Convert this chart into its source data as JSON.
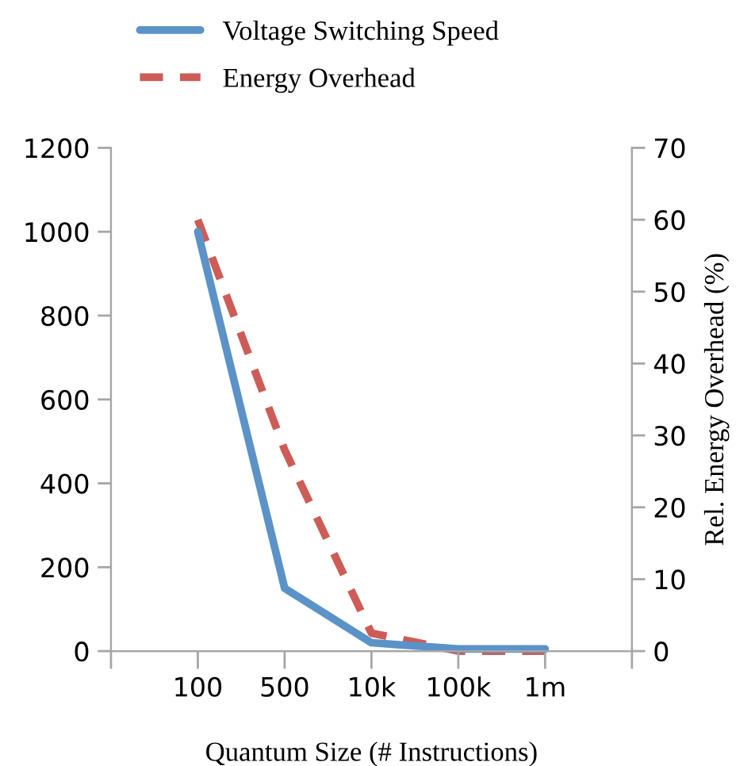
{
  "chart_data": {
    "type": "line",
    "xlabel": "Quantum Size (# Instructions)",
    "y2label": "Rel. Energy Overhead (%)",
    "categories": [
      null,
      "100",
      "500",
      "10k",
      "100k",
      "1m",
      null
    ],
    "series": [
      {
        "name": "Voltage Switching Speed",
        "color": "#5b93c8",
        "line_style": "solid",
        "values": [
          null,
          1000,
          150,
          20,
          5,
          5,
          null
        ]
      },
      {
        "name": "Energy Overhead",
        "color": "#cd5c57",
        "line_style": "dashed",
        "axis": "y2",
        "values": [
          null,
          60,
          28,
          2.5,
          0,
          0,
          null
        ]
      }
    ],
    "ylim": [
      0,
      1200
    ],
    "yticks": [
      0,
      200,
      400,
      600,
      800,
      1000,
      1200
    ],
    "y2lim": [
      0,
      70
    ],
    "y2ticks": [
      0,
      10,
      20,
      30,
      40,
      50,
      60,
      70
    ],
    "grid": false,
    "legend": "top",
    "marker": "none"
  }
}
